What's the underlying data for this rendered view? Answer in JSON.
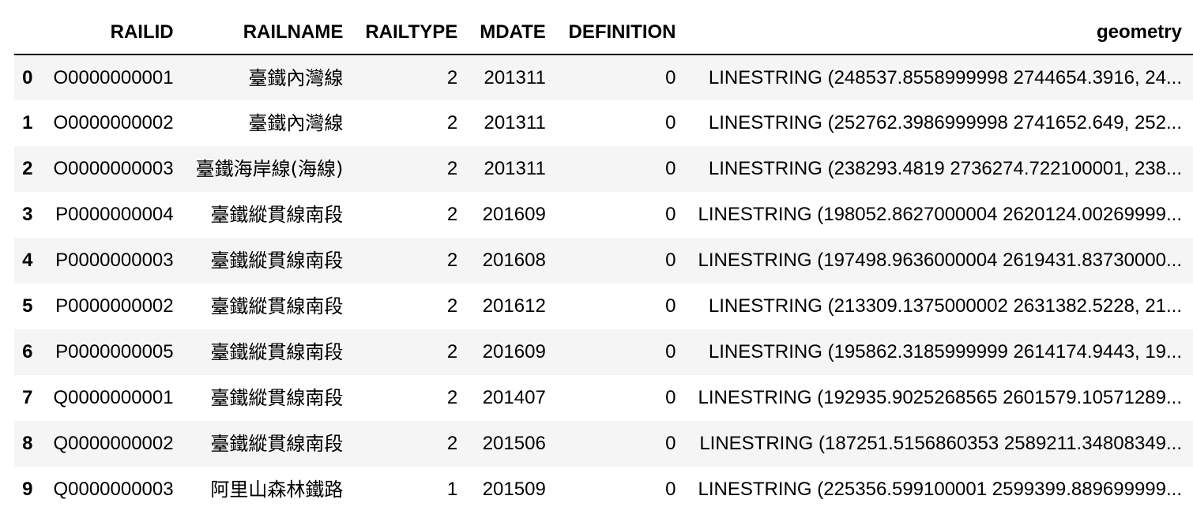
{
  "table": {
    "columns": [
      "",
      "RAILID",
      "RAILNAME",
      "RAILTYPE",
      "MDATE",
      "DEFINITION",
      "geometry"
    ],
    "rows": [
      {
        "index": "0",
        "RAILID": "O0000000001",
        "RAILNAME": "臺鐵內灣線",
        "RAILTYPE": "2",
        "MDATE": "201311",
        "DEFINITION": "0",
        "geometry": "LINESTRING (248537.8558999998 2744654.3916, 24..."
      },
      {
        "index": "1",
        "RAILID": "O0000000002",
        "RAILNAME": "臺鐵內灣線",
        "RAILTYPE": "2",
        "MDATE": "201311",
        "DEFINITION": "0",
        "geometry": "LINESTRING (252762.3986999998 2741652.649, 252..."
      },
      {
        "index": "2",
        "RAILID": "O0000000003",
        "RAILNAME": "臺鐵海岸線(海線)",
        "RAILTYPE": "2",
        "MDATE": "201311",
        "DEFINITION": "0",
        "geometry": "LINESTRING (238293.4819 2736274.722100001, 238..."
      },
      {
        "index": "3",
        "RAILID": "P0000000004",
        "RAILNAME": "臺鐵縱貫線南段",
        "RAILTYPE": "2",
        "MDATE": "201609",
        "DEFINITION": "0",
        "geometry": "LINESTRING (198052.8627000004 2620124.00269999..."
      },
      {
        "index": "4",
        "RAILID": "P0000000003",
        "RAILNAME": "臺鐵縱貫線南段",
        "RAILTYPE": "2",
        "MDATE": "201608",
        "DEFINITION": "0",
        "geometry": "LINESTRING (197498.9636000004 2619431.83730000..."
      },
      {
        "index": "5",
        "RAILID": "P0000000002",
        "RAILNAME": "臺鐵縱貫線南段",
        "RAILTYPE": "2",
        "MDATE": "201612",
        "DEFINITION": "0",
        "geometry": "LINESTRING (213309.1375000002 2631382.5228, 21..."
      },
      {
        "index": "6",
        "RAILID": "P0000000005",
        "RAILNAME": "臺鐵縱貫線南段",
        "RAILTYPE": "2",
        "MDATE": "201609",
        "DEFINITION": "0",
        "geometry": "LINESTRING (195862.3185999999 2614174.9443, 19..."
      },
      {
        "index": "7",
        "RAILID": "Q0000000001",
        "RAILNAME": "臺鐵縱貫線南段",
        "RAILTYPE": "2",
        "MDATE": "201407",
        "DEFINITION": "0",
        "geometry": "LINESTRING (192935.9025268565 2601579.10571289..."
      },
      {
        "index": "8",
        "RAILID": "Q0000000002",
        "RAILNAME": "臺鐵縱貫線南段",
        "RAILTYPE": "2",
        "MDATE": "201506",
        "DEFINITION": "0",
        "geometry": "LINESTRING (187251.5156860353 2589211.34808349..."
      },
      {
        "index": "9",
        "RAILID": "Q0000000003",
        "RAILNAME": "阿里山森林鐵路",
        "RAILTYPE": "1",
        "MDATE": "201509",
        "DEFINITION": "0",
        "geometry": "LINESTRING (225356.599100001 2599399.889699999..."
      }
    ]
  },
  "colors": {
    "striped_row": "#f5f5f5",
    "header_rule": "#000000"
  }
}
